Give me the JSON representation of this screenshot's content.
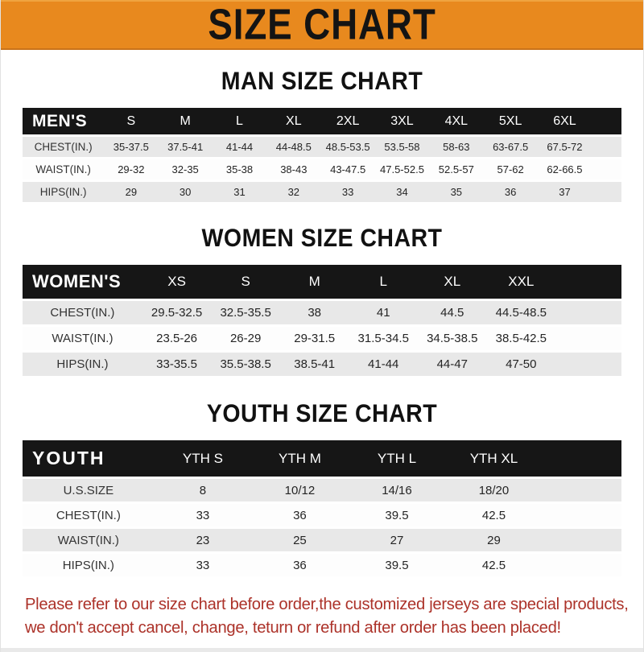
{
  "banner": {
    "title": "SIZE CHART"
  },
  "colors": {
    "banner_bg": "#E8891E",
    "header_bg": "#161616",
    "row_gray": "#E8E8E8",
    "footer_red": "#AC3229"
  },
  "chart_data": [
    {
      "type": "table",
      "title": "MAN SIZE CHART",
      "header_label": "MEN'S",
      "columns": [
        "S",
        "M",
        "L",
        "XL",
        "2XL",
        "3XL",
        "4XL",
        "5XL",
        "6XL"
      ],
      "rows": [
        {
          "label": "CHEST(IN.)",
          "values": [
            "35-37.5",
            "37.5-41",
            "41-44",
            "44-48.5",
            "48.5-53.5",
            "53.5-58",
            "58-63",
            "63-67.5",
            "67.5-72"
          ]
        },
        {
          "label": "WAIST(IN.)",
          "values": [
            "29-32",
            "32-35",
            "35-38",
            "38-43",
            "43-47.5",
            "47.5-52.5",
            "52.5-57",
            "57-62",
            "62-66.5"
          ]
        },
        {
          "label": "HIPS(IN.)",
          "values": [
            "29",
            "30",
            "31",
            "32",
            "33",
            "34",
            "35",
            "36",
            "37"
          ]
        }
      ]
    },
    {
      "type": "table",
      "title": "WOMEN SIZE CHART",
      "header_label": "WOMEN'S",
      "columns": [
        "XS",
        "S",
        "M",
        "L",
        "XL",
        "XXL"
      ],
      "rows": [
        {
          "label": "CHEST(IN.)",
          "values": [
            "29.5-32.5",
            "32.5-35.5",
            "38",
            "41",
            "44.5",
            "44.5-48.5"
          ]
        },
        {
          "label": "WAIST(IN.)",
          "values": [
            "23.5-26",
            "26-29",
            "29-31.5",
            "31.5-34.5",
            "34.5-38.5",
            "38.5-42.5"
          ]
        },
        {
          "label": "HIPS(IN.)",
          "values": [
            "33-35.5",
            "35.5-38.5",
            "38.5-41",
            "41-44",
            "44-47",
            "47-50"
          ]
        }
      ]
    },
    {
      "type": "table",
      "title": "YOUTH SIZE CHART",
      "header_label": "YOUTH",
      "columns": [
        "YTH S",
        "YTH M",
        "YTH L",
        "YTH XL"
      ],
      "rows": [
        {
          "label": "U.S.SIZE",
          "values": [
            "8",
            "10/12",
            "14/16",
            "18/20"
          ]
        },
        {
          "label": "CHEST(IN.)",
          "values": [
            "33",
            "36",
            "39.5",
            "42.5"
          ]
        },
        {
          "label": "WAIST(IN.)",
          "values": [
            "23",
            "25",
            "27",
            "29"
          ]
        },
        {
          "label": "HIPS(IN.)",
          "values": [
            "33",
            "36",
            "39.5",
            "42.5"
          ]
        }
      ]
    }
  ],
  "footer": {
    "line1": "Please refer to our size chart before order,the customized jerseys are special products,",
    "line2": "we don't accept cancel, change, teturn or refund after order has been placed!"
  }
}
